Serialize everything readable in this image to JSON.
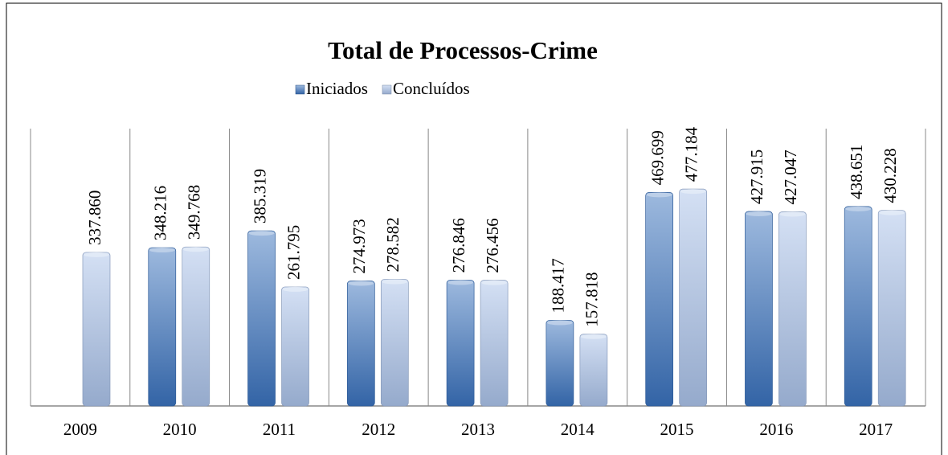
{
  "chart_data": {
    "type": "bar",
    "title": "Total de Processos-Crime",
    "categories": [
      "2009",
      "2010",
      "2011",
      "2012",
      "2013",
      "2014",
      "2015",
      "2016",
      "2017"
    ],
    "series": [
      {
        "name": "Iniciados",
        "color": "#3a72bd",
        "values": [
          null,
          348216,
          385319,
          274973,
          276846,
          188417,
          469699,
          427915,
          438651
        ],
        "value_labels": [
          null,
          "348.216",
          "385.319",
          "274.973",
          "276.846",
          "188.417",
          "469.699",
          "427.915",
          "438.651"
        ]
      },
      {
        "name": "Concluídos",
        "color": "#a9c1e8",
        "values": [
          337860,
          349768,
          261795,
          278582,
          276456,
          157818,
          477184,
          427047,
          430228
        ],
        "value_labels": [
          "337.860",
          "349.768",
          "261.795",
          "278.582",
          "276.456",
          "157.818",
          "477.184",
          "427.047",
          "430.228"
        ]
      }
    ],
    "ylim": [
      0,
      610000
    ],
    "legend": "top"
  }
}
